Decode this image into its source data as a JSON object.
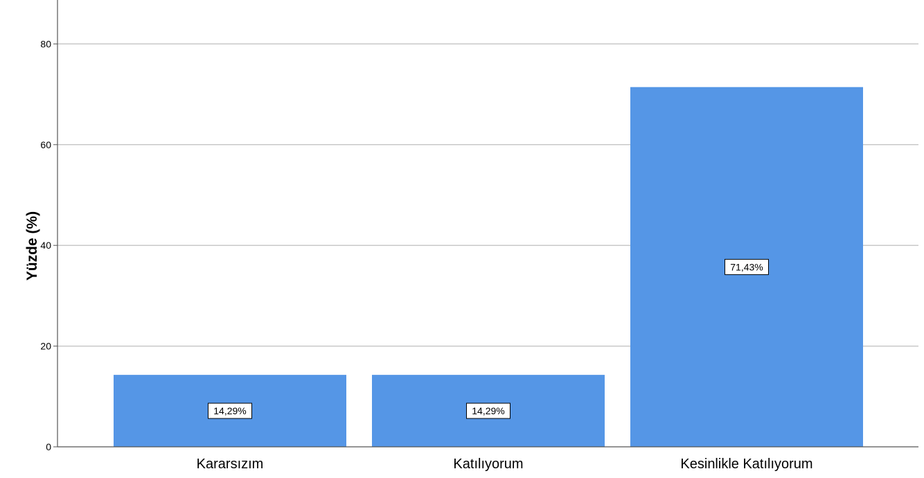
{
  "chart_data": {
    "type": "bar",
    "categories": [
      "Kararsızım",
      "Katılıyorum",
      "Kesinlikle Katılıyorum"
    ],
    "values": [
      14.29,
      14.29,
      71.43
    ],
    "data_labels": [
      "14,29%",
      "14,29%",
      "71,43%"
    ],
    "xlabel": "",
    "ylabel": "Yüzde (%)",
    "ylim": [
      0,
      88
    ],
    "yticks": [
      "0",
      "20",
      "40",
      "60",
      "80"
    ],
    "grid": true,
    "bar_color": "#5596e6",
    "grid_color": "#c8c8c8",
    "axis_color": "#555555"
  }
}
